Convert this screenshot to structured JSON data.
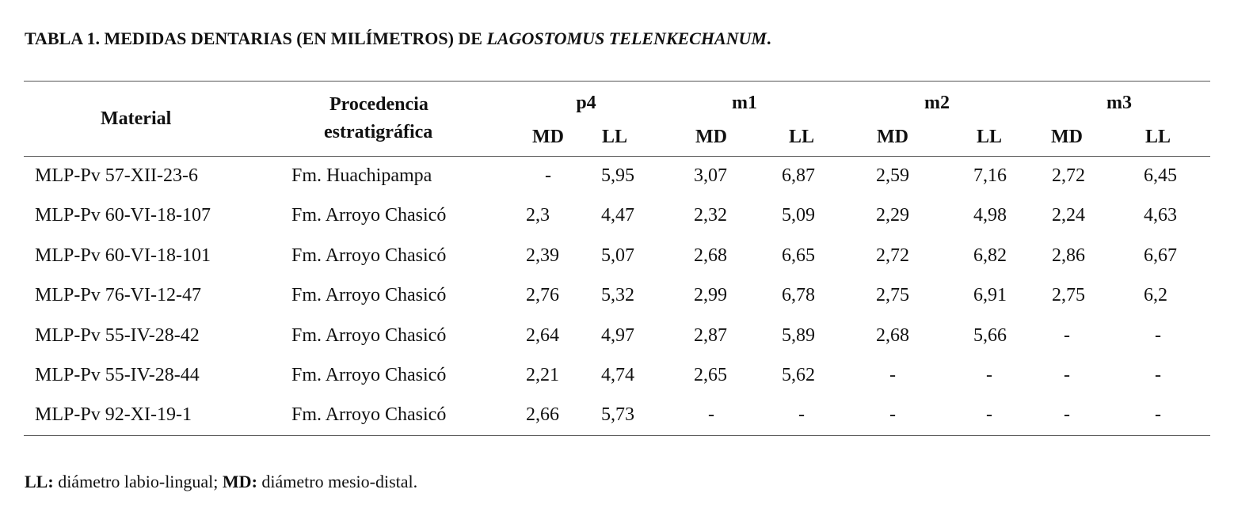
{
  "title": {
    "prefix": "TABLA 1. MEDIDAS DENTARIAS (EN MILÍMETROS) DE ",
    "species": "LAGOSTOMUS TELENKECHANUM",
    "suffix": "."
  },
  "header": {
    "material": "Material",
    "procedencia_line1": "Procedencia",
    "procedencia_line2": "estratigráfica",
    "groups": [
      "p4",
      "m1",
      "m2",
      "m3"
    ],
    "sub": [
      "MD",
      "LL",
      "MD",
      "LL",
      "MD",
      "LL",
      "MD",
      "LL"
    ]
  },
  "rows": [
    {
      "material": "MLP-Pv 57-XII-23-6",
      "procedencia": "Fm. Huachipampa",
      "values": [
        "-",
        "5,95",
        "3,07",
        "6,87",
        "2,59",
        "7,16",
        "2,72",
        "6,45"
      ]
    },
    {
      "material": "MLP-Pv 60-VI-18-107",
      "procedencia": "Fm. Arroyo Chasicó",
      "values": [
        "2,3",
        "4,47",
        "2,32",
        "5,09",
        "2,29",
        "4,98",
        "2,24",
        "4,63"
      ]
    },
    {
      "material": "MLP-Pv 60-VI-18-101",
      "procedencia": "Fm. Arroyo Chasicó",
      "values": [
        "2,39",
        "5,07",
        "2,68",
        "6,65",
        "2,72",
        "6,82",
        "2,86",
        "6,67"
      ]
    },
    {
      "material": "MLP-Pv 76-VI-12-47",
      "procedencia": "Fm. Arroyo Chasicó",
      "values": [
        "2,76",
        "5,32",
        "2,99",
        "6,78",
        "2,75",
        "6,91",
        "2,75",
        "6,2"
      ]
    },
    {
      "material": "MLP-Pv 55-IV-28-42",
      "procedencia": "Fm. Arroyo Chasicó",
      "values": [
        "2,64",
        "4,97",
        "2,87",
        "5,89",
        "2,68",
        "5,66",
        "-",
        "-"
      ]
    },
    {
      "material": "MLP-Pv 55-IV-28-44",
      "procedencia": "Fm. Arroyo Chasicó",
      "values": [
        "2,21",
        "4,74",
        "2,65",
        "5,62",
        "-",
        "-",
        "-",
        "-"
      ]
    },
    {
      "material": "MLP-Pv 92-XI-19-1",
      "procedencia": "Fm. Arroyo Chasicó",
      "values": [
        "2,66",
        "5,73",
        "-",
        "-",
        "-",
        "-",
        "-",
        "-"
      ]
    }
  ],
  "footnote": {
    "ll_label": "LL:",
    "ll_text": " diámetro labio-lingual; ",
    "md_label": "MD:",
    "md_text": " diámetro mesio-distal."
  }
}
